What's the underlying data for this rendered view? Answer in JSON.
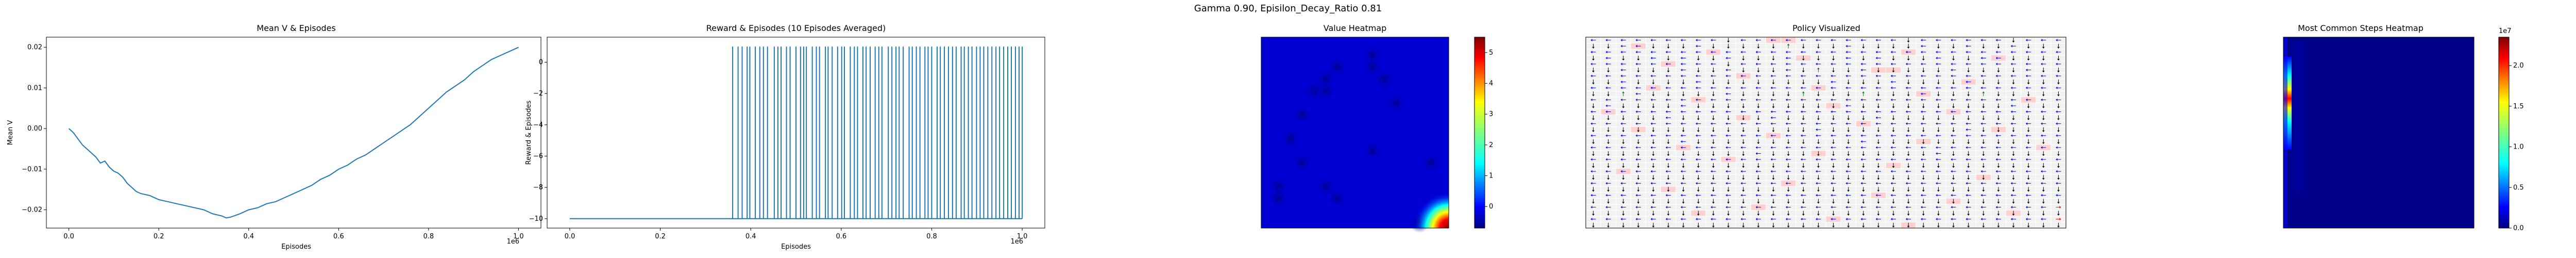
{
  "figure": {
    "suptitle": "Gamma  0.90, Episilon_Decay_Ratio 0.81"
  },
  "chart_data": [
    {
      "type": "line",
      "title": "Mean V & Episodes",
      "xlabel": "Episodes",
      "ylabel": "Mean V",
      "x_offset_label": "1e6",
      "xlim": [
        -0.05,
        1.05
      ],
      "ylim": [
        -0.0245,
        0.0225
      ],
      "xticks": [
        0.0,
        0.2,
        0.4,
        0.6,
        0.8,
        1.0
      ],
      "xtick_labels": [
        "0.0",
        "0.2",
        "0.4",
        "0.6",
        "0.8",
        "1.0"
      ],
      "yticks": [
        -0.02,
        -0.01,
        0.0,
        0.01,
        0.02
      ],
      "ytick_labels": [
        "−0.02",
        "−0.01",
        "0.00",
        "0.01",
        "0.02"
      ],
      "color": "#1f77b4",
      "x": [
        0.0,
        0.01,
        0.02,
        0.03,
        0.05,
        0.06,
        0.07,
        0.08,
        0.09,
        0.1,
        0.11,
        0.12,
        0.13,
        0.14,
        0.15,
        0.16,
        0.18,
        0.2,
        0.22,
        0.24,
        0.26,
        0.28,
        0.3,
        0.32,
        0.34,
        0.35,
        0.36,
        0.38,
        0.4,
        0.42,
        0.44,
        0.46,
        0.48,
        0.5,
        0.52,
        0.54,
        0.56,
        0.58,
        0.6,
        0.62,
        0.64,
        0.66,
        0.68,
        0.7,
        0.72,
        0.74,
        0.76,
        0.78,
        0.8,
        0.82,
        0.84,
        0.86,
        0.88,
        0.9,
        0.92,
        0.94,
        0.96,
        0.98,
        1.0
      ],
      "y": [
        0.0,
        -0.001,
        -0.0025,
        -0.004,
        -0.006,
        -0.007,
        -0.0085,
        -0.008,
        -0.0095,
        -0.0105,
        -0.011,
        -0.012,
        -0.0135,
        -0.0145,
        -0.0155,
        -0.016,
        -0.0165,
        -0.0175,
        -0.018,
        -0.0185,
        -0.019,
        -0.0195,
        -0.02,
        -0.021,
        -0.0215,
        -0.022,
        -0.0218,
        -0.021,
        -0.02,
        -0.0195,
        -0.0185,
        -0.018,
        -0.017,
        -0.016,
        -0.015,
        -0.014,
        -0.0125,
        -0.0115,
        -0.01,
        -0.009,
        -0.0075,
        -0.0065,
        -0.005,
        -0.0035,
        -0.002,
        -0.0005,
        0.001,
        0.003,
        0.005,
        0.007,
        0.009,
        0.0105,
        0.012,
        0.014,
        0.0155,
        0.017,
        0.018,
        0.019,
        0.02
      ]
    },
    {
      "type": "bar",
      "title": "Reward & Episodes (10 Episodes Averaged)",
      "xlabel": "Episodes",
      "ylabel": "Reward & Episodes",
      "x_offset_label": "1e6",
      "xlim": [
        -0.05,
        1.05
      ],
      "ylim": [
        -10.6,
        1.6
      ],
      "baseline": -10,
      "xticks": [
        0.0,
        0.2,
        0.4,
        0.6,
        0.8,
        1.0
      ],
      "xtick_labels": [
        "0.0",
        "0.2",
        "0.4",
        "0.6",
        "0.8",
        "1.0"
      ],
      "yticks": [
        -10,
        -8,
        -6,
        -4,
        -2,
        0
      ],
      "ytick_labels": [
        "−10",
        "−8",
        "−6",
        "−4",
        "−2",
        "0"
      ],
      "color": "#1f77b4",
      "spike_value": 1,
      "spike_x": [
        0.36,
        0.372,
        0.381,
        0.392,
        0.398,
        0.41,
        0.42,
        0.428,
        0.437,
        0.452,
        0.46,
        0.467,
        0.479,
        0.487,
        0.5,
        0.51,
        0.517,
        0.523,
        0.536,
        0.545,
        0.552,
        0.565,
        0.571,
        0.58,
        0.592,
        0.601,
        0.607,
        0.62,
        0.629,
        0.636,
        0.648,
        0.655,
        0.664,
        0.675,
        0.683,
        0.69,
        0.704,
        0.712,
        0.721,
        0.728,
        0.737,
        0.75,
        0.757,
        0.766,
        0.774,
        0.785,
        0.792,
        0.8,
        0.812,
        0.819,
        0.828,
        0.837,
        0.846,
        0.854,
        0.865,
        0.872,
        0.881,
        0.889,
        0.899,
        0.907,
        0.915,
        0.924,
        0.933,
        0.942,
        0.95,
        0.959,
        0.968,
        0.976,
        0.985,
        0.993,
        1.0
      ]
    },
    {
      "type": "heatmap",
      "title": "Value Heatmap",
      "grid_size": 16,
      "colormap": "jet",
      "colorbar_range": [
        -0.7,
        5.5
      ],
      "colorbar_ticks": [
        0,
        1,
        2,
        3,
        4,
        5
      ],
      "colorbar_tick_labels": [
        "0",
        "1",
        "2",
        "3",
        "4",
        "5"
      ],
      "background_value": 0.0,
      "low_cells": [
        [
          2,
          6
        ],
        [
          3,
          5
        ],
        [
          4,
          5
        ],
        [
          1,
          9
        ],
        [
          2,
          9
        ],
        [
          3,
          10
        ],
        [
          5,
          11
        ],
        [
          4,
          4
        ],
        [
          6,
          3
        ],
        [
          10,
          3
        ],
        [
          12,
          1
        ],
        [
          13,
          1
        ],
        [
          12,
          5
        ],
        [
          13,
          6
        ],
        [
          15,
          13
        ],
        [
          8,
          2
        ],
        [
          9,
          9
        ],
        [
          10,
          14
        ]
      ],
      "low_value": -0.5,
      "goal_cell": [
        15,
        15
      ],
      "goal_value": 5.3
    },
    {
      "type": "heatmap",
      "title": "Policy Visualized",
      "grid_size": 32,
      "arrow_colors": {
        "left": "#0000ff",
        "down": "#000000",
        "up": "#008000",
        "right": "#ff0000"
      },
      "hole_color": "#ffd0d0",
      "arrows": [
        "LLLLLLLLLDLLLLLLLLLLLDLLLLLLDLLL",
        "DDLLDDDLDDDDDUDDDLDDDDLDDLDDLDDD",
        "LLLLLLLLLLLLLLLLLLLLLLLLLLLLLLLL",
        "DLDDLDLDDLDDDLDDDLDLDDDLDDLLDDDD",
        "LLLLLLLLLDLLLLLLLLLLLLLLLLLLLLLL",
        "DDLDDDLDDLDDDLDUDDLDDDDDLDDDDLDD",
        "LLLLLLLLLLLLLLLLLLLLLLLLLLLLLLLL",
        "DDLDDDDLDDDDDDDDLDDDLDDDDLDDDDDD",
        "LLLLLLLLLLLLLLLLLLLLLLLLLLLLLLLL",
        "DDULDDDDDLDDDDUDDDUDDDLDDDUDDDDD",
        "LLLLLLLLLLLLLLLLLLLLLLLLLLLLLLLL",
        "DLDDDDLDDDDDDDDDDLDDDDDDDDDDLDDD",
        "LLLLLLLLLLLLLLLLLLLLLLLLLLLLLLLL",
        "DDDDDLDDDDDDLDDDDDDLDDDDDDDDDDDD",
        "LLLLLLLLLLLLLLLLLLLLLLLLLLLLLLLL",
        "DDDDDDDDDDDDDDDLDDDDDDDDDLDDDDDD",
        "LLLLLLLLLLLLLLLLLLLLLLLLLLLLLLLL",
        "DDDDDDLDDDDDDDDDDDLDDDDDDDDDDDDD",
        "LLLLLLLLLLLLLLLLLLLLLLLLLLLLLLLL",
        "DDDDDDDDDDDLDDDDDDDDDDDLDDDDDDDD",
        "LLLLLLLLLLLLLLLLLLLLLLLLLLLLLLLL",
        "DDDDDDDDDDDDDDDDDDDDDDDDDDDDDDDD",
        "LLLLLLLLLLLLLLLLLLLLLLLLLLLLLLLL",
        "DDDDDDDDDDDDDDDDDDDDDDDDDDDDDDDD",
        "LLLLLLLLLLLLLLLLLLLLLLLLLLLLLLLL",
        "DDDDDDDDDDDDDDDDDDDDDDDDDDDDDDDD",
        "LLLLLLLLLLLLLLLLLLLLLLLLLLLLLLLL",
        "DDDDDDDDDDDDDDDDDDDDDDDDDDDDDDDD",
        "LLLLLLLLLLLLLLLLLLLLLLLLLLLLLLLR",
        "DDDDDDDDDDDDDDDDDDDDDDDDDDDDDDDD",
        "LLLLLLLLLLLLLLLLLLLLLLLLLLLLLLLR",
        "DDDDDDDDDDDDDDDDDDDDDDDDDDDDDDDD"
      ],
      "holes": [
        [
          0,
          12
        ],
        [
          0,
          13
        ],
        [
          1,
          3
        ],
        [
          2,
          8
        ],
        [
          2,
          21
        ],
        [
          3,
          14
        ],
        [
          3,
          27
        ],
        [
          4,
          5
        ],
        [
          5,
          19
        ],
        [
          5,
          20
        ],
        [
          6,
          10
        ],
        [
          7,
          25
        ],
        [
          8,
          4
        ],
        [
          8,
          15
        ],
        [
          9,
          22
        ],
        [
          10,
          7
        ],
        [
          10,
          29
        ],
        [
          11,
          16
        ],
        [
          12,
          1
        ],
        [
          12,
          24
        ],
        [
          13,
          10
        ],
        [
          14,
          18
        ],
        [
          15,
          3
        ],
        [
          15,
          27
        ],
        [
          16,
          12
        ],
        [
          17,
          22
        ],
        [
          18,
          6
        ],
        [
          18,
          30
        ],
        [
          19,
          15
        ],
        [
          20,
          9
        ],
        [
          21,
          20
        ],
        [
          22,
          2
        ],
        [
          23,
          26
        ],
        [
          24,
          13
        ],
        [
          25,
          5
        ],
        [
          26,
          19
        ],
        [
          27,
          24
        ],
        [
          28,
          11
        ],
        [
          29,
          7
        ],
        [
          29,
          28
        ],
        [
          30,
          16
        ],
        [
          31,
          21
        ]
      ]
    },
    {
      "type": "heatmap",
      "title": "Most Common Steps Heatmap",
      "colormap": "jet",
      "colorbar_range": [
        0,
        2.35
      ],
      "colorbar_ticks": [
        0.0,
        0.5,
        1.0,
        1.5,
        2.0
      ],
      "colorbar_tick_labels": [
        "0.0",
        "0.5",
        "1.0",
        "1.5",
        "2.0"
      ],
      "colorbar_offset_label": "1e7"
    }
  ]
}
